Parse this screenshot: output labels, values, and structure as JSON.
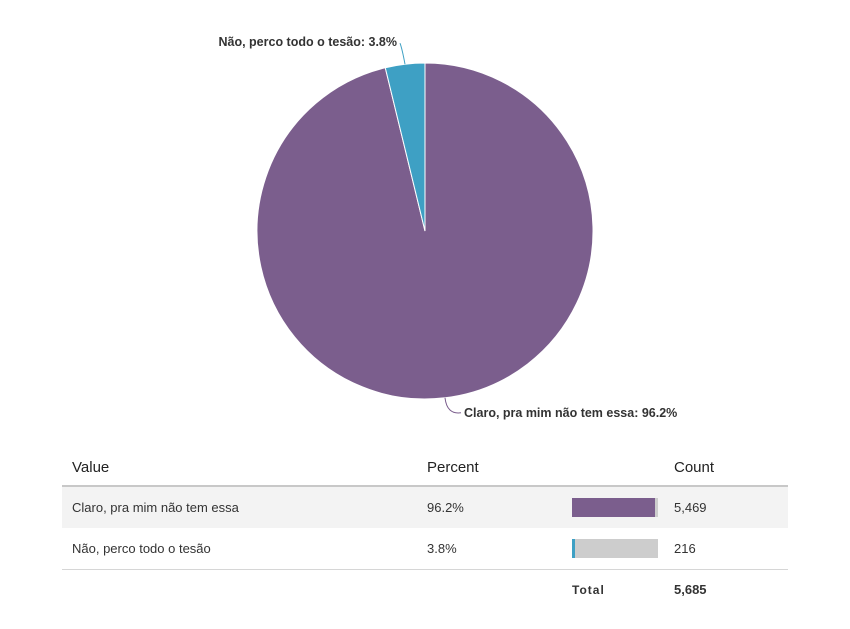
{
  "chart_data": {
    "type": "pie",
    "slices": [
      {
        "label": "Claro, pra mim não tem essa",
        "percent": 96.2,
        "count": 5469,
        "color": "#7b5e8d"
      },
      {
        "label": "Não, perco todo o tesão",
        "percent": 3.8,
        "count": 216,
        "color": "#3ea0c4"
      }
    ],
    "data_labels": [
      "Claro, pra mim não tem essa: 96.2%",
      "Não, perco todo o tesão: 3.8%"
    ]
  },
  "table": {
    "headers": {
      "value": "Value",
      "percent": "Percent",
      "count": "Count"
    },
    "rows": [
      {
        "value": "Claro, pra mim não tem essa",
        "percent": "96.2%",
        "count": "5,469"
      },
      {
        "value": "Não, perco todo o tesão",
        "percent": "3.8%",
        "count": "216"
      }
    ],
    "total_label": "Total",
    "total_value": "5,685"
  },
  "colors": {
    "accent_purple": "#7b5e8d",
    "accent_blue": "#3ea0c4",
    "bar_track": "#cdcdcd"
  }
}
